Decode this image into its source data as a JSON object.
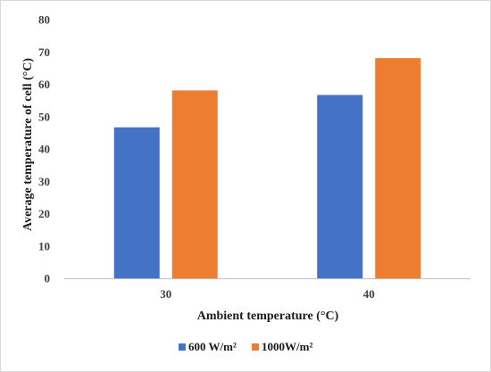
{
  "chart_data": {
    "type": "bar",
    "categories": [
      "30",
      "40"
    ],
    "series": [
      {
        "name": "600 W/m²",
        "values": [
          46.7,
          56.7
        ],
        "color": "#4472C4"
      },
      {
        "name": "1000W/m²",
        "values": [
          58.1,
          68.1
        ],
        "color": "#ED7D31"
      }
    ],
    "xlabel": "Ambient temperature (°C)",
    "ylabel": "Average temperature of cell (°C)",
    "ylim": [
      0,
      80
    ],
    "yticks": [
      "0",
      "10",
      "20",
      "30",
      "40",
      "50",
      "60",
      "70",
      "80"
    ],
    "grid": false,
    "legend_position": "bottom"
  }
}
